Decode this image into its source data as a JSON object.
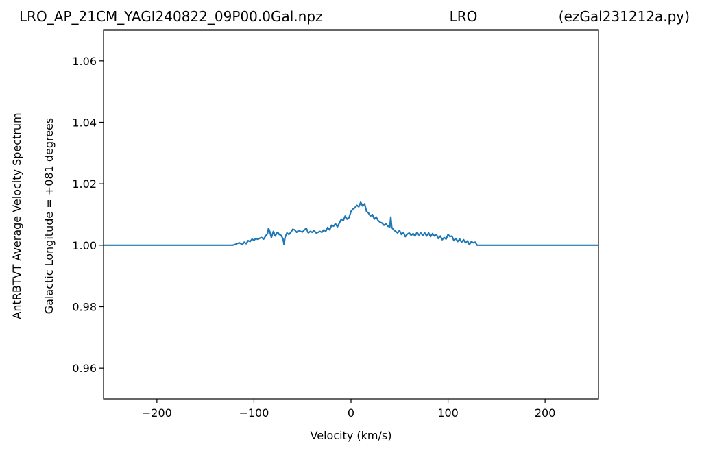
{
  "chart_data": {
    "type": "line",
    "title_left": "LRO_AP_21CM_YAGI240822_09P00.0Gal.npz",
    "title_center": "LRO",
    "title_right": "(ezGal231212a.py)",
    "xlabel": "Velocity (km/s)",
    "ylabel_line1": "AntRBTVT Average Velocity Spectrum",
    "ylabel_line2": "Galactic Longitude = +081 degrees",
    "xlim": [
      -255,
      255
    ],
    "ylim": [
      0.95,
      1.07
    ],
    "xticks": [
      -200,
      -100,
      0,
      100,
      200
    ],
    "xtick_labels": [
      "−200",
      "−100",
      "0",
      "100",
      "200"
    ],
    "yticks": [
      0.96,
      0.98,
      1.0,
      1.02,
      1.04,
      1.06
    ],
    "ytick_labels": [
      "0.96",
      "0.98",
      "1.00",
      "1.02",
      "1.04",
      "1.06"
    ],
    "grid": false,
    "line_color": "#1f77b4",
    "series": [
      {
        "x": [
          -255,
          -122,
          -119,
          -117,
          -115,
          -113,
          -112,
          -110,
          -108,
          -106,
          -104,
          -102,
          -100,
          -98,
          -96,
          -94,
          -92,
          -90,
          -88,
          -86,
          -85,
          -84,
          -82,
          -80,
          -78,
          -76,
          -75,
          -74,
          -72,
          -70,
          -69,
          -68,
          -66,
          -64,
          -62,
          -60,
          -58,
          -56,
          -54,
          -52,
          -50,
          -48,
          -46,
          -44,
          -42,
          -40,
          -38,
          -36,
          -34,
          -32,
          -30,
          -28,
          -26,
          -24,
          -22,
          -20,
          -18,
          -16,
          -14,
          -12,
          -10,
          -8,
          -6,
          -4,
          -2,
          0,
          2,
          4,
          6,
          8,
          10,
          12,
          14,
          16,
          18,
          20,
          22,
          24,
          26,
          28,
          30,
          32,
          34,
          36,
          38,
          40,
          41,
          42,
          44,
          46,
          48,
          50,
          52,
          54,
          56,
          58,
          60,
          62,
          64,
          66,
          68,
          70,
          72,
          74,
          76,
          78,
          80,
          82,
          84,
          86,
          88,
          90,
          92,
          94,
          96,
          98,
          100,
          102,
          104,
          106,
          108,
          110,
          112,
          114,
          116,
          118,
          120,
          122,
          124,
          126,
          128,
          130,
          132,
          255
        ],
        "y": [
          1.0,
          1.0,
          1.0003,
          1.0006,
          1.0008,
          1.0004,
          1.0002,
          1.001,
          1.0005,
          1.0015,
          1.0012,
          1.002,
          1.0016,
          1.0022,
          1.0019,
          1.0023,
          1.0025,
          1.002,
          1.003,
          1.0038,
          1.0055,
          1.0048,
          1.0025,
          1.0045,
          1.003,
          1.0042,
          1.004,
          1.0035,
          1.0032,
          1.002,
          1.0002,
          1.0025,
          1.004,
          1.0035,
          1.0042,
          1.0052,
          1.005,
          1.0042,
          1.0048,
          1.0045,
          1.0043,
          1.005,
          1.0055,
          1.004,
          1.0045,
          1.0042,
          1.0047,
          1.004,
          1.0042,
          1.0045,
          1.0042,
          1.005,
          1.0045,
          1.0058,
          1.005,
          1.0065,
          1.0062,
          1.007,
          1.006,
          1.0072,
          1.0085,
          1.008,
          1.0095,
          1.0085,
          1.009,
          1.011,
          1.0118,
          1.0122,
          1.013,
          1.0125,
          1.014,
          1.0128,
          1.0135,
          1.011,
          1.0105,
          1.0095,
          1.01,
          1.0085,
          1.0092,
          1.008,
          1.0075,
          1.0072,
          1.0065,
          1.007,
          1.0062,
          1.006,
          1.0092,
          1.0058,
          1.005,
          1.0045,
          1.004,
          1.0048,
          1.0035,
          1.0042,
          1.0028,
          1.0036,
          1.004,
          1.0032,
          1.0038,
          1.003,
          1.0042,
          1.0033,
          1.004,
          1.0032,
          1.004,
          1.003,
          1.004,
          1.0028,
          1.0038,
          1.003,
          1.0035,
          1.0022,
          1.003,
          1.0018,
          1.0025,
          1.002,
          1.0035,
          1.0028,
          1.003,
          1.0015,
          1.0022,
          1.0012,
          1.002,
          1.001,
          1.0018,
          1.0008,
          1.0014,
          1.0002,
          1.0012,
          1.0008,
          1.001,
          1.0,
          1.0,
          1.0
        ]
      }
    ]
  }
}
